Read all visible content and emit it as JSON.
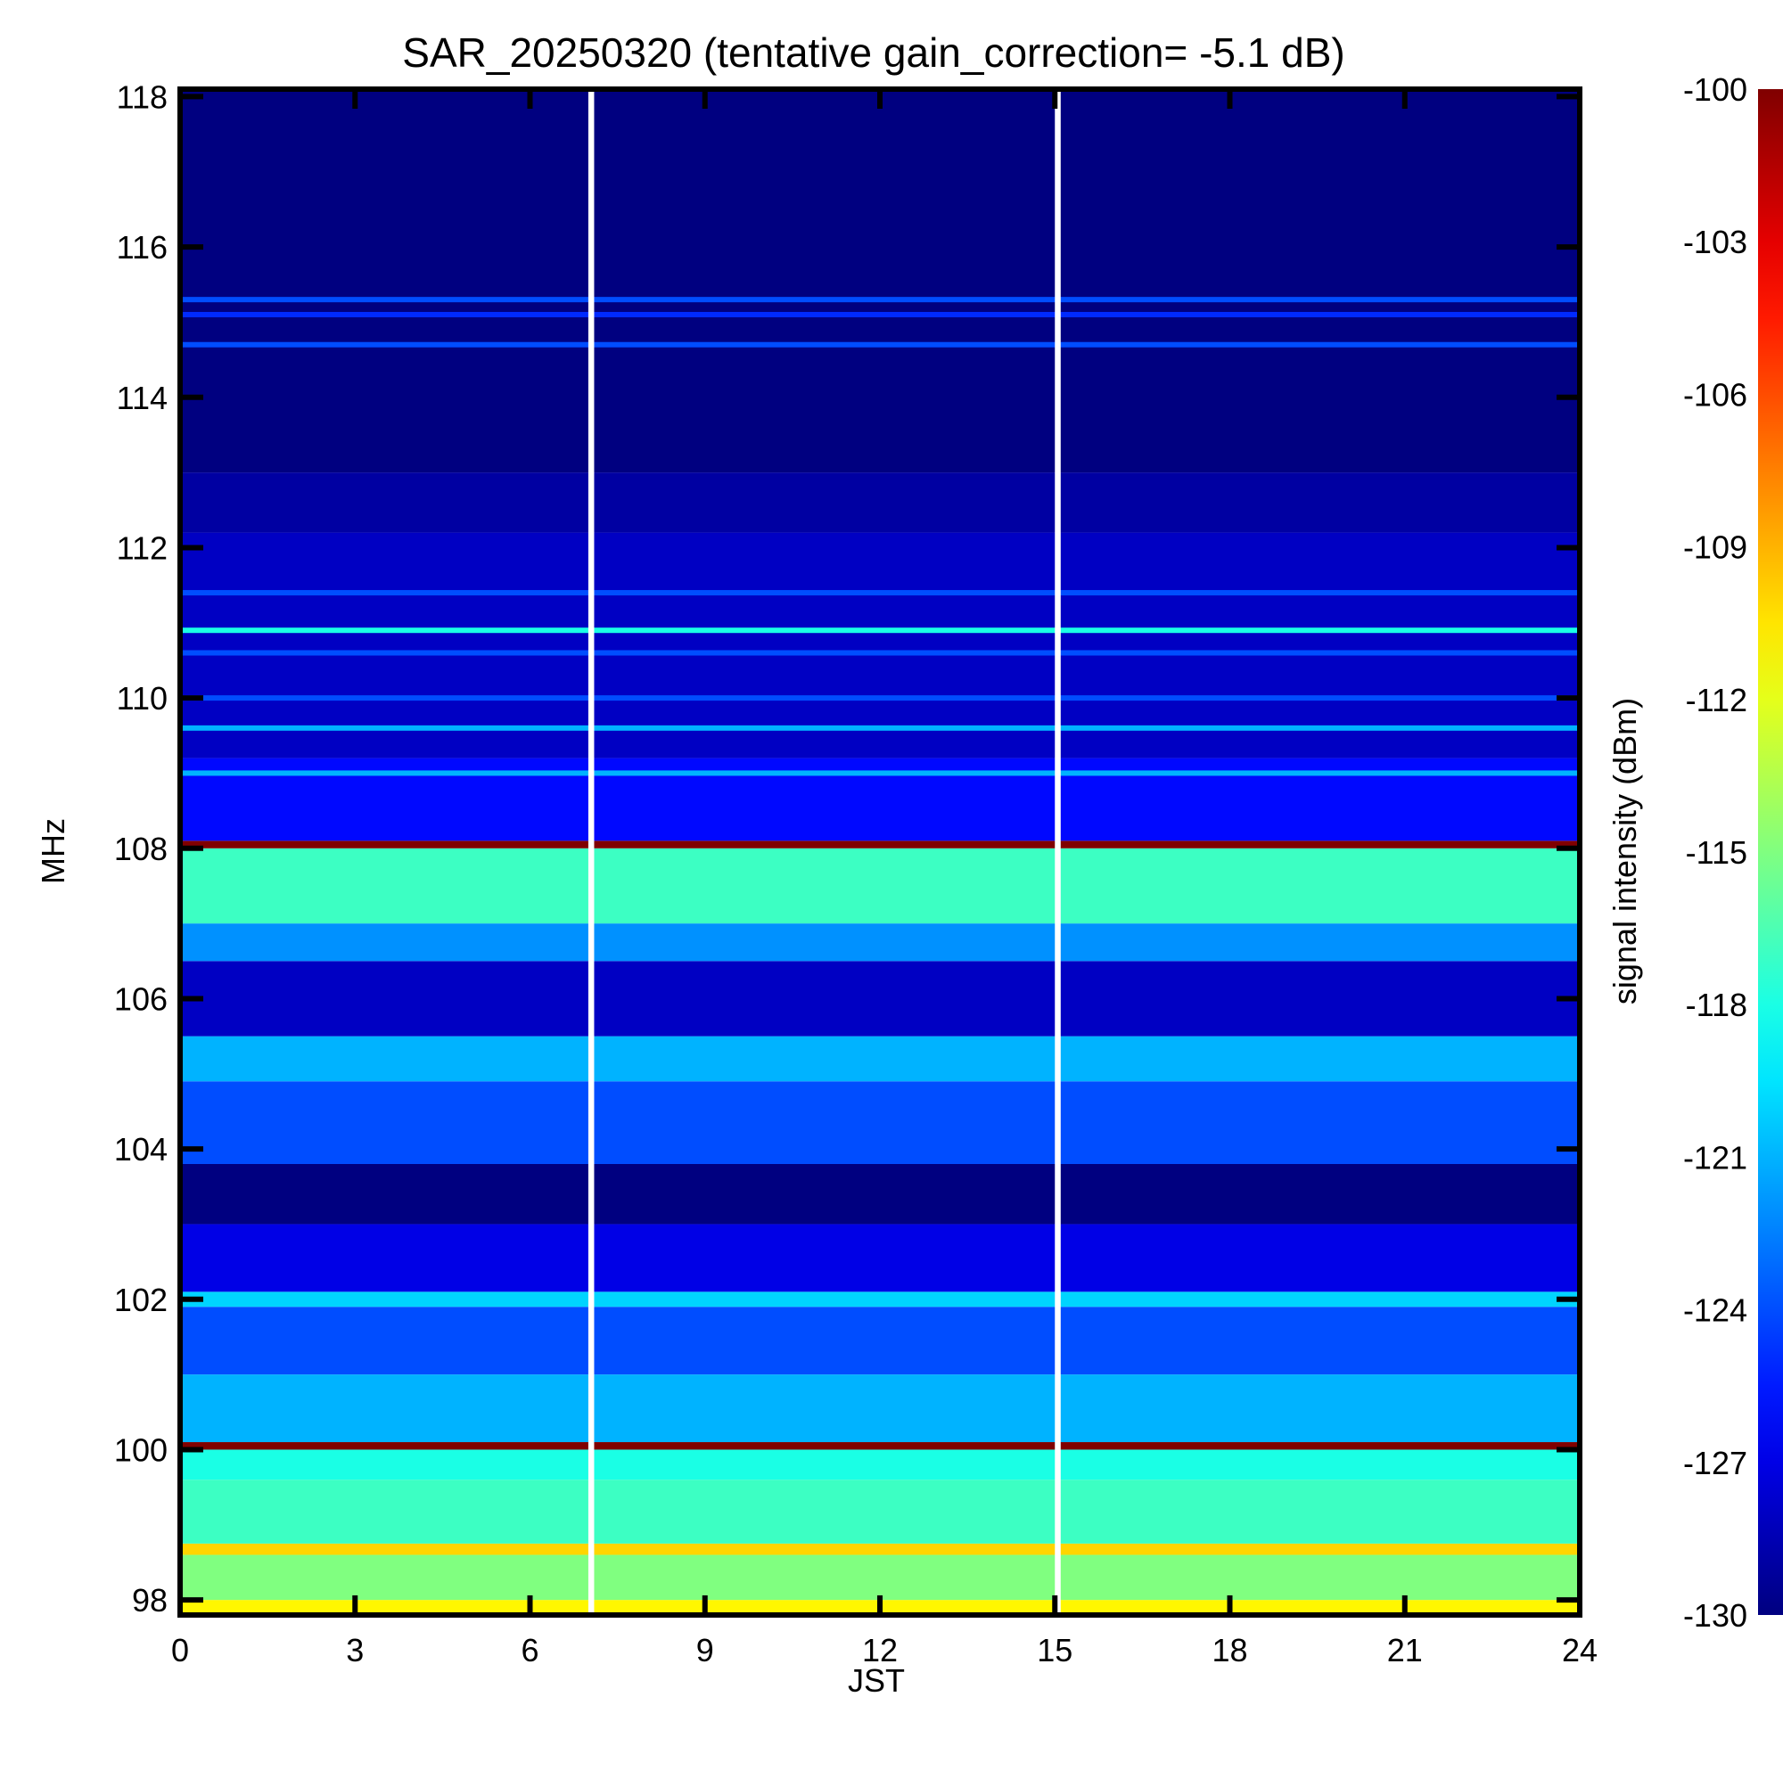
{
  "chart_data": {
    "type": "heatmap",
    "title": "SAR_20250320 (tentative gain_correction= -5.1 dB)",
    "xlabel": "JST",
    "ylabel": "MHz",
    "colorbar_label": "signal intensity (dBm)",
    "xlim": [
      0,
      24
    ],
    "ylim": [
      97.8,
      118.1
    ],
    "x_ticks": [
      0,
      3,
      6,
      9,
      12,
      15,
      18,
      21,
      24
    ],
    "y_ticks": [
      98,
      100,
      102,
      104,
      106,
      108,
      110,
      112,
      114,
      116,
      118
    ],
    "colorbar_range": [
      -130,
      -100
    ],
    "colorbar_ticks": [
      -100,
      -103,
      -106,
      -109,
      -112,
      -115,
      -118,
      -121,
      -124,
      -127,
      -130
    ],
    "colormap": "jet",
    "data_gaps_hours": [
      [
        7.0,
        7.1
      ],
      [
        15.0,
        15.1
      ]
    ],
    "bands": [
      {
        "from_mhz": 97.8,
        "to_mhz": 98.0,
        "dbm": -111
      },
      {
        "from_mhz": 98.0,
        "to_mhz": 98.6,
        "dbm": -115
      },
      {
        "from_mhz": 98.6,
        "to_mhz": 98.75,
        "dbm": -110
      },
      {
        "from_mhz": 98.75,
        "to_mhz": 99.6,
        "dbm": -117
      },
      {
        "from_mhz": 99.6,
        "to_mhz": 100.0,
        "dbm": -118
      },
      {
        "from_mhz": 100.0,
        "to_mhz": 100.1,
        "dbm": -100
      },
      {
        "from_mhz": 100.1,
        "to_mhz": 101.0,
        "dbm": -121
      },
      {
        "from_mhz": 101.0,
        "to_mhz": 101.9,
        "dbm": -124
      },
      {
        "from_mhz": 101.9,
        "to_mhz": 102.1,
        "dbm": -120
      },
      {
        "from_mhz": 102.1,
        "to_mhz": 103.0,
        "dbm": -127
      },
      {
        "from_mhz": 103.0,
        "to_mhz": 103.8,
        "dbm": -130
      },
      {
        "from_mhz": 103.8,
        "to_mhz": 104.9,
        "dbm": -124
      },
      {
        "from_mhz": 104.9,
        "to_mhz": 105.5,
        "dbm": -121
      },
      {
        "from_mhz": 105.5,
        "to_mhz": 106.5,
        "dbm": -128
      },
      {
        "from_mhz": 106.5,
        "to_mhz": 107.0,
        "dbm": -122
      },
      {
        "from_mhz": 107.0,
        "to_mhz": 108.0,
        "dbm": -117
      },
      {
        "from_mhz": 108.0,
        "to_mhz": 108.1,
        "dbm": -100
      },
      {
        "from_mhz": 108.1,
        "to_mhz": 109.2,
        "dbm": -126
      },
      {
        "from_mhz": 109.2,
        "to_mhz": 112.2,
        "dbm": -128
      },
      {
        "from_mhz": 112.2,
        "to_mhz": 113.0,
        "dbm": -129
      },
      {
        "from_mhz": 113.0,
        "to_mhz": 118.1,
        "dbm": -130
      }
    ],
    "lines": [
      {
        "mhz": 115.3,
        "dbm": -124
      },
      {
        "mhz": 114.7,
        "dbm": -124
      },
      {
        "mhz": 115.1,
        "dbm": -125
      },
      {
        "mhz": 111.4,
        "dbm": -124
      },
      {
        "mhz": 110.9,
        "dbm": -118
      },
      {
        "mhz": 110.6,
        "dbm": -124
      },
      {
        "mhz": 110.0,
        "dbm": -124
      },
      {
        "mhz": 109.6,
        "dbm": -121
      },
      {
        "mhz": 109.0,
        "dbm": -121
      }
    ]
  }
}
